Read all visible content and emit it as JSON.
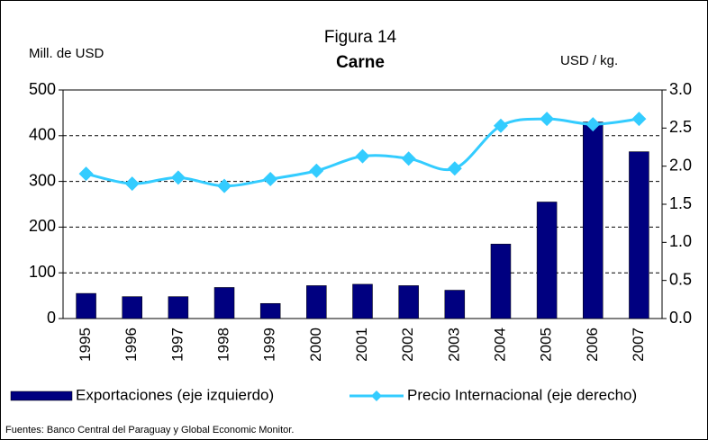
{
  "chart_data": {
    "type": "bar-line",
    "title": "Figura 14",
    "subtitle": "Carne",
    "y_label": "Mill. de USD",
    "y2_label": "USD / kg.",
    "categories": [
      "1995",
      "1996",
      "1997",
      "1998",
      "1999",
      "2000",
      "2001",
      "2002",
      "2003",
      "2004",
      "2005",
      "2006",
      "2007"
    ],
    "series": [
      {
        "name": "Exportaciones (eje izquierdo)",
        "color": "#000080",
        "kind": "bar",
        "values": [
          55,
          48,
          48,
          68,
          33,
          72,
          75,
          72,
          62,
          163,
          255,
          430,
          365
        ]
      },
      {
        "name": "Precio Internacional (eje derecho)",
        "color": "#33ccff",
        "kind": "line",
        "axis": "y2",
        "values": [
          1.9,
          1.77,
          1.85,
          1.74,
          1.83,
          1.94,
          2.13,
          2.1,
          1.97,
          2.53,
          2.62,
          2.55,
          2.62
        ]
      }
    ],
    "ylim": [
      0,
      500
    ],
    "yticks": [
      0,
      100,
      200,
      300,
      400,
      500
    ],
    "y2lim": [
      0,
      3
    ],
    "y2ticks": [
      {
        "value": 0,
        "label": "0.0"
      },
      0.5,
      {
        "value": 1,
        "label": "1.0"
      },
      1.5,
      {
        "value": 2,
        "label": "2.0"
      },
      2.5,
      {
        "value": 3,
        "label": "3.0"
      }
    ],
    "grid": true,
    "legend": "bottom",
    "source": "Fuentes: Banco Central del Paraguay y Global Economic Monitor."
  }
}
